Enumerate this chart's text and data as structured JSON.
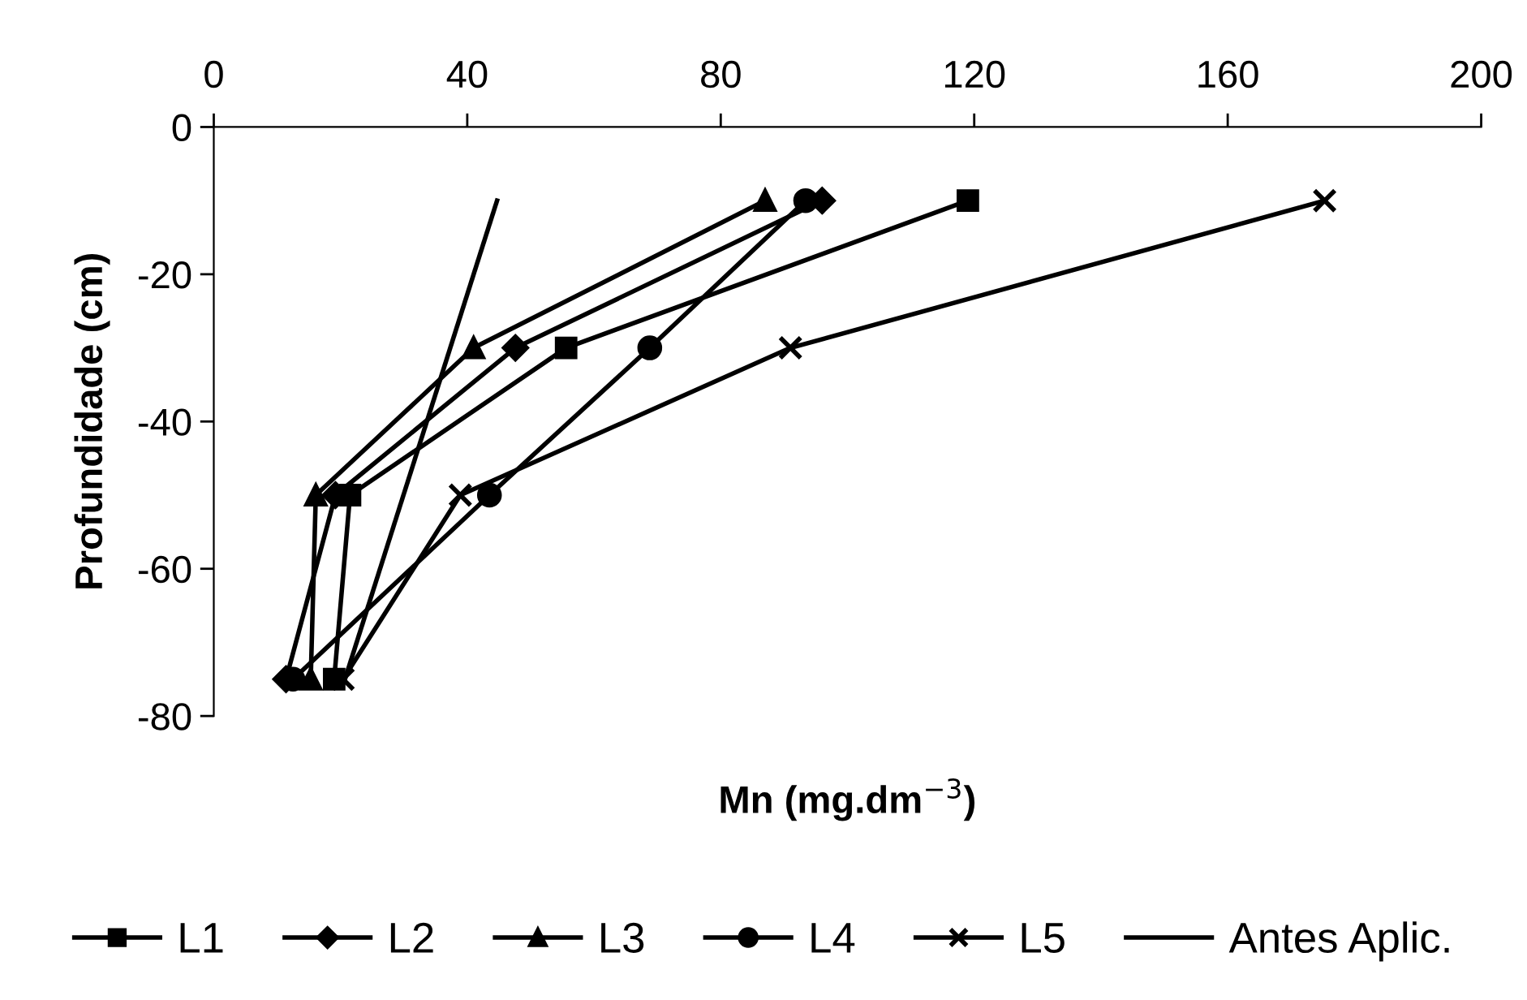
{
  "chart_data": {
    "type": "line",
    "xlabel": "Mn (mg.dm$^{−3}$)",
    "ylabel": "Profundidade (cm)",
    "xlim": [
      0,
      200
    ],
    "xticks": [
      0,
      40,
      80,
      120,
      160,
      200
    ],
    "ylim": [
      -80,
      0
    ],
    "yticks": [
      -80,
      -60,
      -40,
      -20,
      0
    ],
    "grid": false,
    "legend": "bottom",
    "series": [
      {
        "name": "L1",
        "color": "#000000",
        "marker": "square",
        "x": [
          119,
          55.6,
          21.5,
          19
        ],
        "values": [
          -10,
          -30,
          -50,
          -75
        ]
      },
      {
        "name": "L2",
        "color": "#000000",
        "marker": "diamond",
        "x": [
          96,
          47.6,
          19.2,
          11.4
        ],
        "values": [
          -10,
          -30,
          -50,
          -75
        ]
      },
      {
        "name": "L3",
        "color": "#000000",
        "marker": "triangle",
        "x": [
          87,
          41,
          16.1,
          15.3
        ],
        "values": [
          -10,
          -30,
          -50,
          -75
        ]
      },
      {
        "name": "L4",
        "color": "#000000",
        "marker": "circle",
        "x": [
          93.4,
          68.8,
          43.5,
          12.5
        ],
        "values": [
          -10,
          -30,
          -50,
          -75
        ]
      },
      {
        "name": "L5",
        "color": "#000000",
        "marker": "cross",
        "x": [
          175.3,
          91,
          38.9,
          20.4
        ],
        "values": [
          -10,
          -30,
          -50,
          -75
        ]
      },
      {
        "name": "Antes Aplic.",
        "color": "#000000",
        "marker": "none",
        "x": [
          44.7,
          20.7
        ],
        "values": [
          -10,
          -75
        ]
      }
    ]
  }
}
